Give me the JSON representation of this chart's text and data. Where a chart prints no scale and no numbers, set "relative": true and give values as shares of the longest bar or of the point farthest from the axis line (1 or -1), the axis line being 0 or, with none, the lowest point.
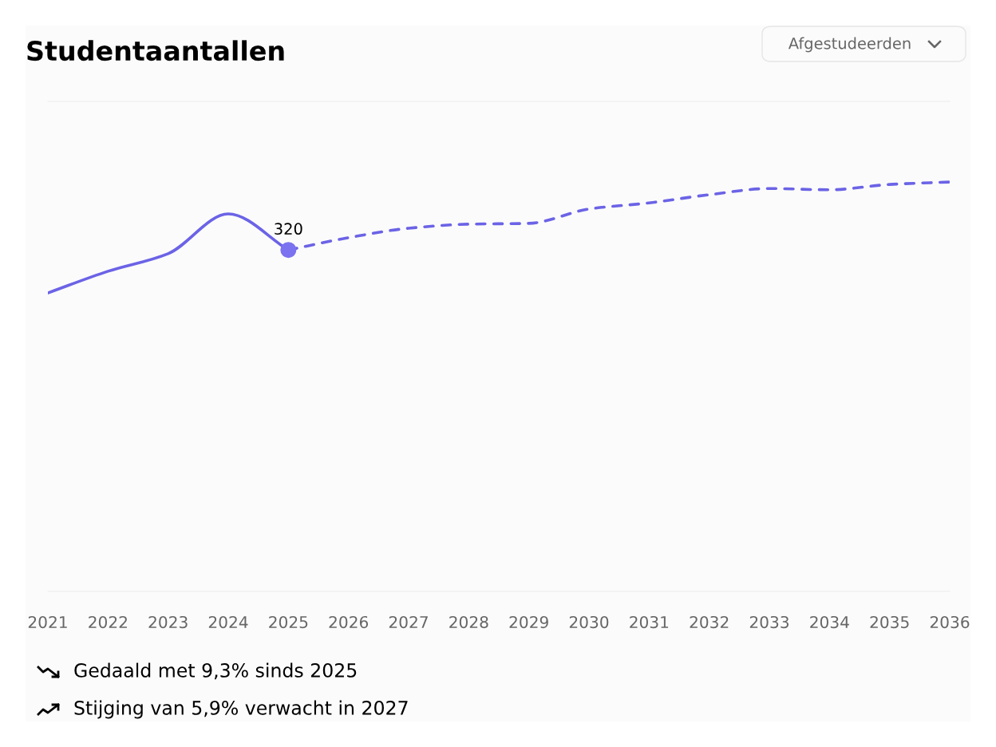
{
  "chart_data": {
    "type": "line",
    "title": "Studentaantallen",
    "relative": true,
    "xlim": [
      2021,
      2036
    ],
    "xticks": [
      2021,
      2022,
      2023,
      2024,
      2025,
      2026,
      2027,
      2028,
      2029,
      2030,
      2031,
      2032,
      2033,
      2034,
      2035,
      2036
    ],
    "series": [
      {
        "color": "#6b63e6",
        "line_style": "solid",
        "x": [
          2021,
          2022,
          2023,
          2024,
          2025
        ],
        "values": [
          0.729,
          0.782,
          0.825,
          0.922,
          0.834
        ]
      },
      {
        "color": "#6b63e6",
        "line_style": "dashed",
        "x": [
          2025,
          2026,
          2027,
          2028,
          2029,
          2030,
          2031,
          2032,
          2033,
          2034,
          2035,
          2036
        ],
        "values": [
          0.834,
          0.864,
          0.887,
          0.897,
          0.899,
          0.934,
          0.949,
          0.969,
          0.984,
          0.981,
          0.994,
          1
        ]
      },
      {
        "type": "scatter",
        "color": "#7b72f0",
        "marker": "circle",
        "x": [
          2025
        ],
        "values": [
          0.834
        ]
      }
    ],
    "annotations": [
      {
        "text": "320",
        "x": 2025,
        "y": 0.834
      },
      "Afgestudeerden",
      "Gedaald met 9,3% sinds 2025",
      "Stijging van 5,9% verwacht in 2027"
    ]
  }
}
